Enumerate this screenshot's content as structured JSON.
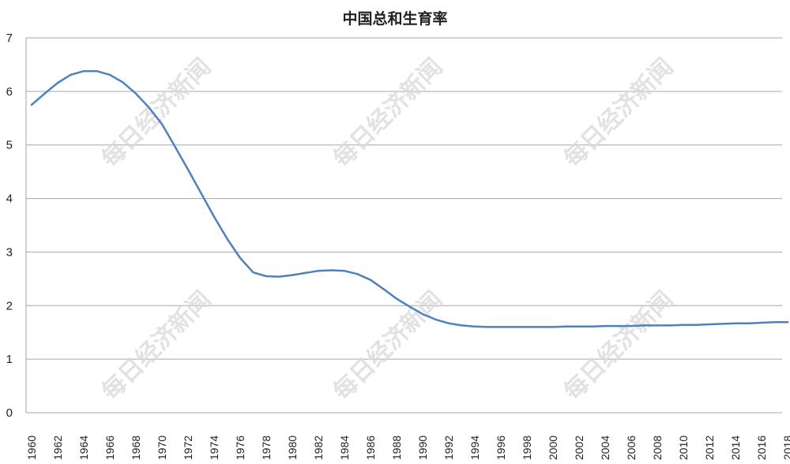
{
  "chart_data": {
    "type": "line",
    "title": "中国总和生育率",
    "xlabel": "",
    "ylabel": "",
    "ylim": [
      0,
      7
    ],
    "yticks": [
      "0",
      "1",
      "2",
      "3",
      "4",
      "5",
      "6",
      "7"
    ],
    "grid": true,
    "legend": "none",
    "line_color": "#4f81bd",
    "x": [
      1960,
      1961,
      1962,
      1963,
      1964,
      1965,
      1966,
      1967,
      1968,
      1969,
      1970,
      1971,
      1972,
      1973,
      1974,
      1975,
      1976,
      1977,
      1978,
      1979,
      1980,
      1981,
      1982,
      1983,
      1984,
      1985,
      1986,
      1987,
      1988,
      1989,
      1990,
      1991,
      1992,
      1993,
      1994,
      1995,
      1996,
      1997,
      1998,
      1999,
      2000,
      2001,
      2002,
      2003,
      2004,
      2005,
      2006,
      2007,
      2008,
      2009,
      2010,
      2011,
      2012,
      2013,
      2014,
      2015,
      2016,
      2017,
      2018
    ],
    "values": [
      5.75,
      5.96,
      6.16,
      6.31,
      6.38,
      6.38,
      6.31,
      6.17,
      5.96,
      5.7,
      5.39,
      4.97,
      4.54,
      4.1,
      3.66,
      3.25,
      2.89,
      2.62,
      2.55,
      2.54,
      2.57,
      2.61,
      2.65,
      2.66,
      2.65,
      2.59,
      2.48,
      2.31,
      2.13,
      1.98,
      1.84,
      1.74,
      1.67,
      1.63,
      1.61,
      1.6,
      1.6,
      1.6,
      1.6,
      1.6,
      1.6,
      1.61,
      1.61,
      1.61,
      1.62,
      1.62,
      1.62,
      1.63,
      1.63,
      1.63,
      1.64,
      1.64,
      1.65,
      1.66,
      1.67,
      1.67,
      1.68,
      1.69,
      1.69
    ],
    "xticks": [
      "1960",
      "1962",
      "1964",
      "1966",
      "1968",
      "1970",
      "1972",
      "1974",
      "1976",
      "1978",
      "1980",
      "1982",
      "1984",
      "1986",
      "1988",
      "1990",
      "1992",
      "1994",
      "1996",
      "1998",
      "2000",
      "2002",
      "2004",
      "2006",
      "2008",
      "2010",
      "2012",
      "2014",
      "2016",
      "2018"
    ]
  },
  "watermark": "每日经济新闻"
}
